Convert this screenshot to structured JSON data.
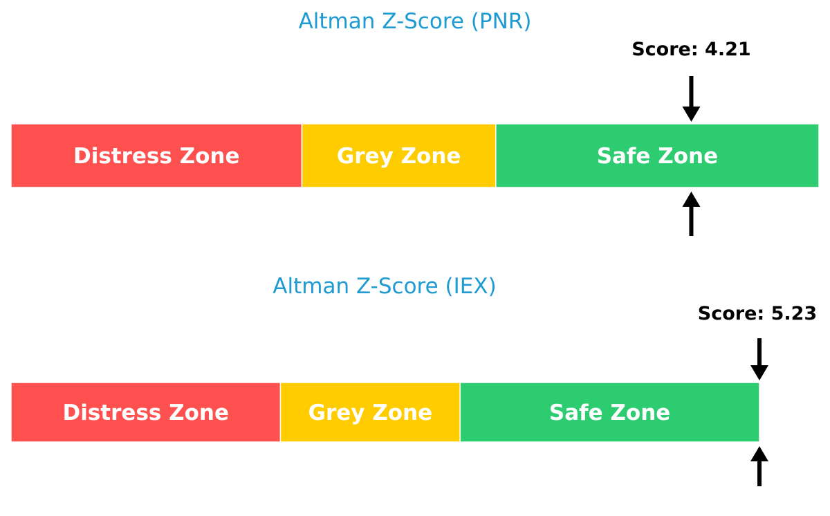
{
  "chart_data": [
    {
      "type": "bar",
      "title": "Altman Z-Score (PNR)",
      "score_label": "Score: 4.21",
      "score": 4.21,
      "xlim": [
        0,
        5
      ],
      "zones": [
        {
          "name": "Distress Zone",
          "from": 0,
          "to": 1.8,
          "color": "#FF5050"
        },
        {
          "name": "Grey Zone",
          "from": 1.8,
          "to": 3.0,
          "color": "#FFCC00"
        },
        {
          "name": "Safe Zone",
          "from": 3.0,
          "to": 5.0,
          "color": "#2ECC71"
        }
      ]
    },
    {
      "type": "bar",
      "title": "Altman Z-Score (IEX)",
      "score_label": "Score: 5.23",
      "score": 5.23,
      "xlim": [
        0,
        5
      ],
      "zones": [
        {
          "name": "Distress Zone",
          "from": 0,
          "to": 1.8,
          "color": "#FF5050"
        },
        {
          "name": "Grey Zone",
          "from": 1.8,
          "to": 3.0,
          "color": "#FFCC00"
        },
        {
          "name": "Safe Zone",
          "from": 3.0,
          "to": 5.0,
          "color": "#2ECC71"
        }
      ]
    }
  ]
}
